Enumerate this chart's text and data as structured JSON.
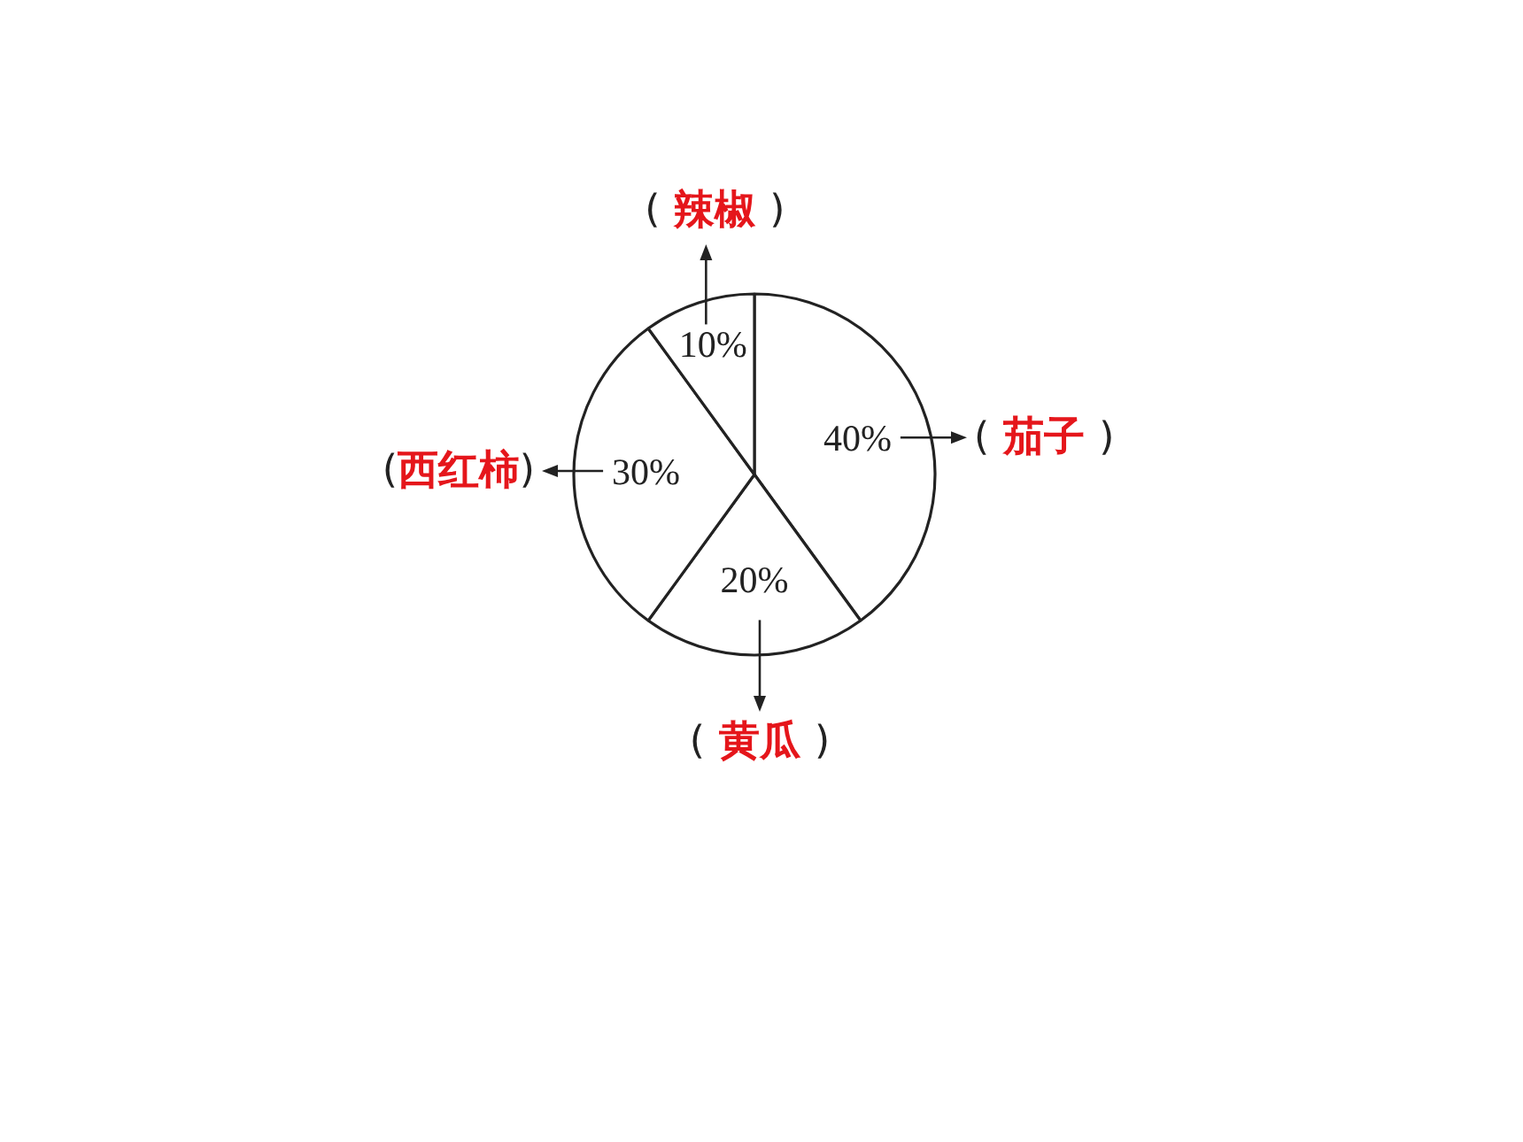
{
  "chart_data": {
    "type": "pie",
    "categories": [
      "( 茄子 )",
      "( 黄瓜 )",
      "(西红柿)",
      "( 辣椒 )"
    ],
    "values": [
      40,
      20,
      30,
      10
    ],
    "colors": [
      "#ffffff",
      "#ffffff",
      "#ffffff",
      "#ffffff"
    ],
    "value_labels": [
      "40%",
      "20%",
      "30%",
      "10%"
    ]
  }
}
